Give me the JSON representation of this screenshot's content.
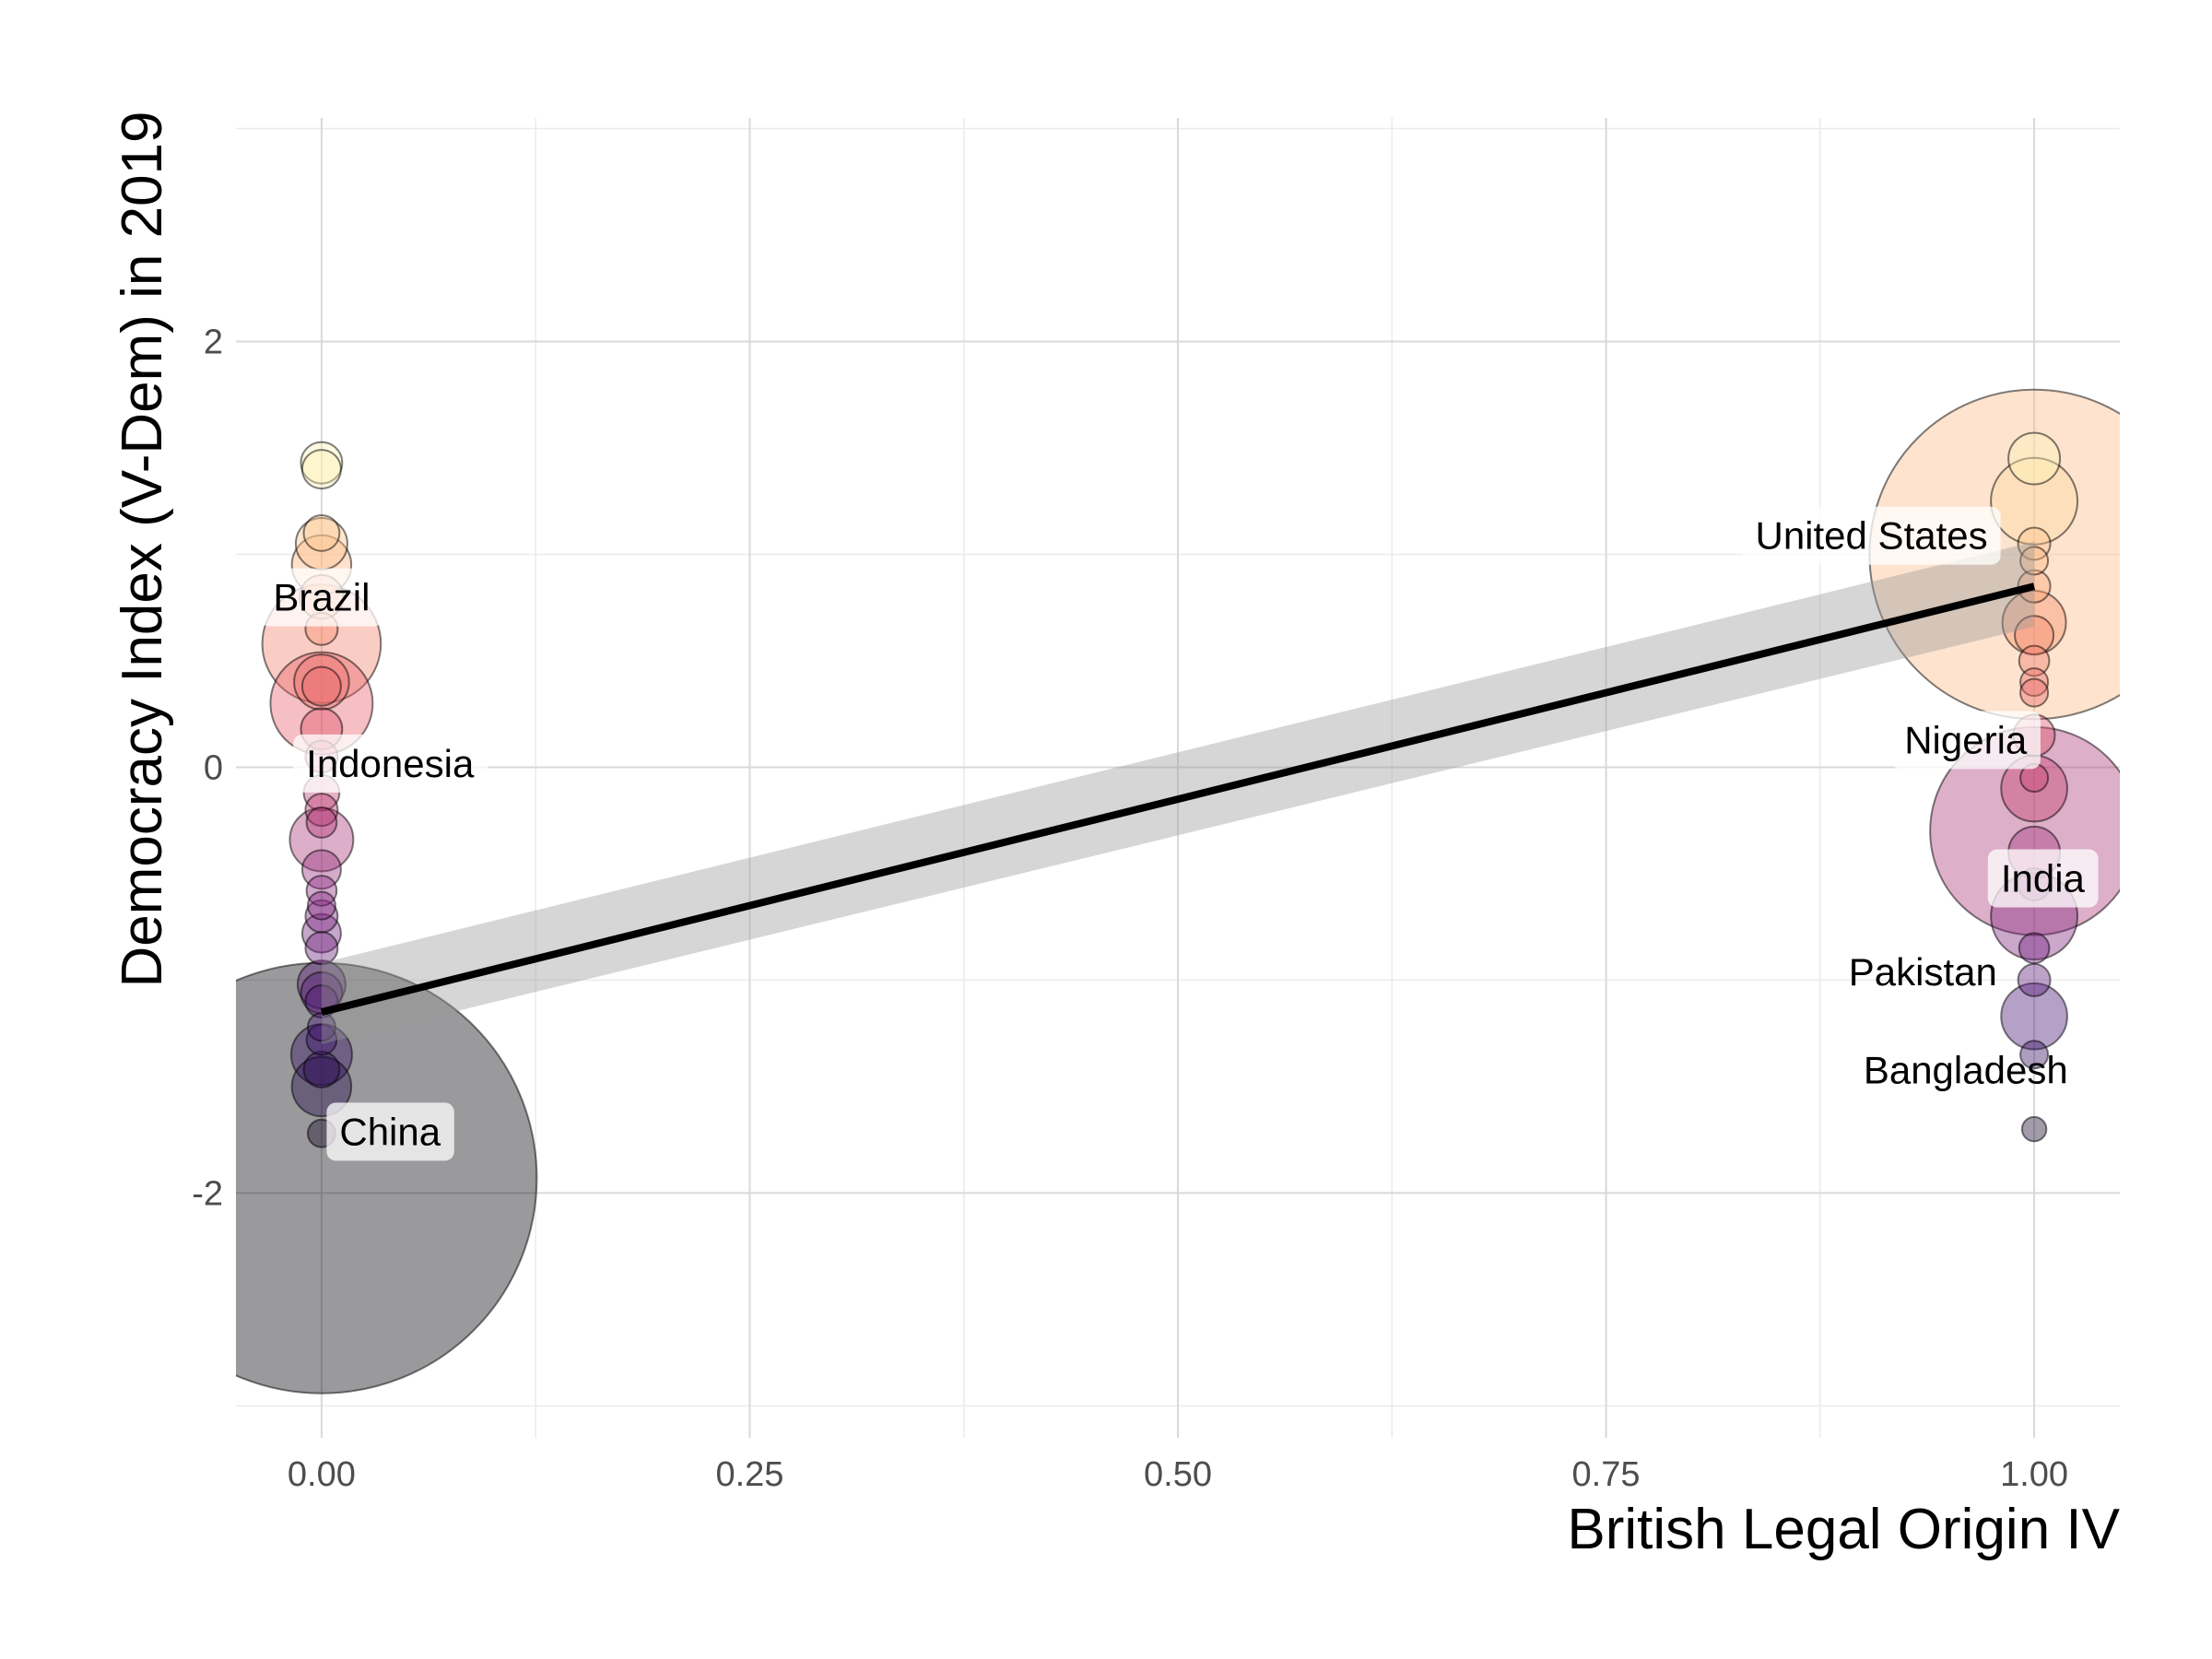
{
  "chart_data": {
    "type": "scatter",
    "title": "",
    "xlabel": "British Legal Origin IV",
    "ylabel": "Democracy Index (V-Dem) in 2019",
    "xlim": [
      -0.05,
      1.05
    ],
    "ylim": [
      -3.15,
      3.05
    ],
    "x_ticks": [
      0,
      0.25,
      0.5,
      0.75,
      1
    ],
    "x_tick_labels": [
      "0.00",
      "0.25",
      "0.50",
      "0.75",
      "1.00"
    ],
    "y_ticks": [
      -2,
      0,
      2
    ],
    "y_tick_labels": [
      "-2",
      "0",
      "2"
    ],
    "grid": true,
    "legend": "none",
    "palette": [
      "#000004",
      "#3b0f70",
      "#8c2981",
      "#de4968",
      "#fe9f6d",
      "#fcfdbf"
    ],
    "points": [
      {
        "x": 0,
        "y": 1.43,
        "size": 0.05
      },
      {
        "x": 0,
        "y": 1.4,
        "size": 0.04
      },
      {
        "x": 0,
        "y": 1.1,
        "size": 0.03
      },
      {
        "x": 0,
        "y": 1.05,
        "size": 0.1
      },
      {
        "x": 0,
        "y": 0.95,
        "size": 0.15
      },
      {
        "x": 0,
        "y": 0.8,
        "size": 0.06
      },
      {
        "x": 0,
        "y": 0.65,
        "size": 0.02
      },
      {
        "x": 0,
        "y": 0.58,
        "size": 0.85
      },
      {
        "x": 0,
        "y": 0.4,
        "size": 0.12
      },
      {
        "x": 0,
        "y": 0.38,
        "size": 0.04
      },
      {
        "x": 0,
        "y": 0.3,
        "size": 0.6
      },
      {
        "x": 0,
        "y": 0.18,
        "size": 0.05
      },
      {
        "x": 0,
        "y": 0.05,
        "size": 0.02
      },
      {
        "x": 0,
        "y": -0.12,
        "size": 0.03
      },
      {
        "x": 0,
        "y": -0.2,
        "size": 0.02
      },
      {
        "x": 0,
        "y": -0.26,
        "size": 0.015
      },
      {
        "x": 0,
        "y": -0.34,
        "size": 0.18
      },
      {
        "x": 0,
        "y": -0.48,
        "size": 0.04
      },
      {
        "x": 0,
        "y": -0.58,
        "size": 0.015
      },
      {
        "x": 0,
        "y": -0.65,
        "size": 0.01
      },
      {
        "x": 0,
        "y": -0.7,
        "size": 0.02
      },
      {
        "x": 0,
        "y": -0.78,
        "size": 0.04
      },
      {
        "x": 0,
        "y": -0.85,
        "size": 0.02
      },
      {
        "x": 0,
        "y": -1.02,
        "size": 0.08
      },
      {
        "x": 0,
        "y": -1.06,
        "size": 0.05
      },
      {
        "x": 0,
        "y": -1.1,
        "size": 0.02
      },
      {
        "x": 0,
        "y": -1.22,
        "size": 0.01
      },
      {
        "x": 0,
        "y": -1.28,
        "size": 0.015
      },
      {
        "x": 0,
        "y": -1.35,
        "size": 0.16
      },
      {
        "x": 0,
        "y": -1.42,
        "size": 0.03
      },
      {
        "x": 0,
        "y": -1.5,
        "size": 0.15
      },
      {
        "x": 0,
        "y": -1.72,
        "size": 0.01
      },
      {
        "x": 0,
        "y": -1.93,
        "size": 14
      },
      {
        "x": 1,
        "y": 1.45,
        "size": 0.1
      },
      {
        "x": 1,
        "y": 1.25,
        "size": 0.4
      },
      {
        "x": 1,
        "y": 1.05,
        "size": 0.02
      },
      {
        "x": 1,
        "y": 1.0,
        "size": 8.0
      },
      {
        "x": 1,
        "y": 0.97,
        "size": 0.01
      },
      {
        "x": 1,
        "y": 0.85,
        "size": 0.02
      },
      {
        "x": 1,
        "y": 0.68,
        "size": 0.18
      },
      {
        "x": 1,
        "y": 0.62,
        "size": 0.04
      },
      {
        "x": 1,
        "y": 0.5,
        "size": 0.015
      },
      {
        "x": 1,
        "y": 0.4,
        "size": 0.01
      },
      {
        "x": 1,
        "y": 0.35,
        "size": 0.01
      },
      {
        "x": 1,
        "y": 0.15,
        "size": 0.05
      },
      {
        "x": 1,
        "y": -0.05,
        "size": 0.01
      },
      {
        "x": 1,
        "y": -0.1,
        "size": 0.2
      },
      {
        "x": 1,
        "y": -0.3,
        "size": 3.0
      },
      {
        "x": 1,
        "y": -0.4,
        "size": 0.1
      },
      {
        "x": 1,
        "y": -0.55,
        "size": 0.02
      },
      {
        "x": 1,
        "y": -0.7,
        "size": 0.4
      },
      {
        "x": 1,
        "y": -0.85,
        "size": 0.015
      },
      {
        "x": 1,
        "y": -1.0,
        "size": 0.02
      },
      {
        "x": 1,
        "y": -1.17,
        "size": 0.2
      },
      {
        "x": 1,
        "y": -1.35,
        "size": 0.01
      },
      {
        "x": 1,
        "y": -1.7,
        "size": 0.005
      }
    ],
    "labels": [
      {
        "text": "Brazil",
        "x": 0,
        "y": 0.8,
        "boxed": true
      },
      {
        "text": "Indonesia",
        "x": 0.04,
        "y": 0.02,
        "boxed": true
      },
      {
        "text": "China",
        "x": 0.04,
        "y": -1.71,
        "boxed": true
      },
      {
        "text": "United States",
        "x": 0.905,
        "y": 1.09,
        "boxed": true
      },
      {
        "text": "Nigeria",
        "x": 0.96,
        "y": 0.13,
        "boxed": true
      },
      {
        "text": "India",
        "x": 1.005,
        "y": -0.52,
        "boxed": true
      },
      {
        "text": "Pakistan",
        "x": 0.935,
        "y": -0.96,
        "boxed": false
      },
      {
        "text": "Bangladesh",
        "x": 0.96,
        "y": -1.42,
        "boxed": false
      }
    ],
    "fit_line": {
      "x": [
        0,
        1
      ],
      "y": [
        -1.15,
        0.85
      ]
    },
    "confidence_band": {
      "x": [
        0,
        1
      ],
      "lower": [
        -1.3,
        0.66
      ],
      "upper": [
        -0.92,
        1.06
      ]
    }
  }
}
